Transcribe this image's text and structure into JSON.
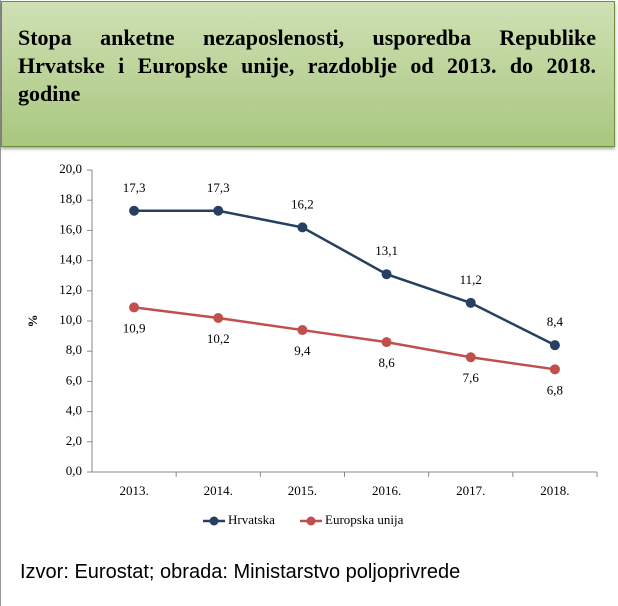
{
  "chart_data": {
    "type": "line",
    "title": "Stopa anketne nezaposlenosti, usporedba Republike Hrvatske i Europske unije, razdoblje od 2013. do 2018. godine",
    "ylabel": "%",
    "categories": [
      "2013.",
      "2014.",
      "2015.",
      "2016.",
      "2017.",
      "2018."
    ],
    "series": [
      {
        "name": "Hrvatska",
        "color": "#254061",
        "values": [
          17.3,
          17.3,
          16.2,
          13.1,
          11.2,
          8.4
        ],
        "value_labels": [
          "17,3",
          "17,3",
          "16,2",
          "13,1",
          "11,2",
          "8,4"
        ]
      },
      {
        "name": "Europska unija",
        "color": "#c0504d",
        "values": [
          10.9,
          10.2,
          9.4,
          8.6,
          7.6,
          6.8
        ],
        "value_labels": [
          "10,9",
          "10,2",
          "9,4",
          "8,6",
          "7,6",
          "6,8"
        ]
      }
    ],
    "ylim": [
      0,
      20
    ],
    "yticks": [
      {
        "value": 0,
        "label": "0,0"
      },
      {
        "value": 2,
        "label": "2,0"
      },
      {
        "value": 4,
        "label": "4,0"
      },
      {
        "value": 6,
        "label": "6,0"
      },
      {
        "value": 8,
        "label": "8,0"
      },
      {
        "value": 10,
        "label": "10,0"
      },
      {
        "value": 12,
        "label": "12,0"
      },
      {
        "value": 14,
        "label": "14,0"
      },
      {
        "value": 16,
        "label": "16,0"
      },
      {
        "value": 18,
        "label": "18,0"
      },
      {
        "value": 20,
        "label": "20,0"
      }
    ],
    "grid": false,
    "legend": "bottom",
    "source": "Izvor: Eurostat; obrada: Ministarstvo poljoprivrede"
  }
}
